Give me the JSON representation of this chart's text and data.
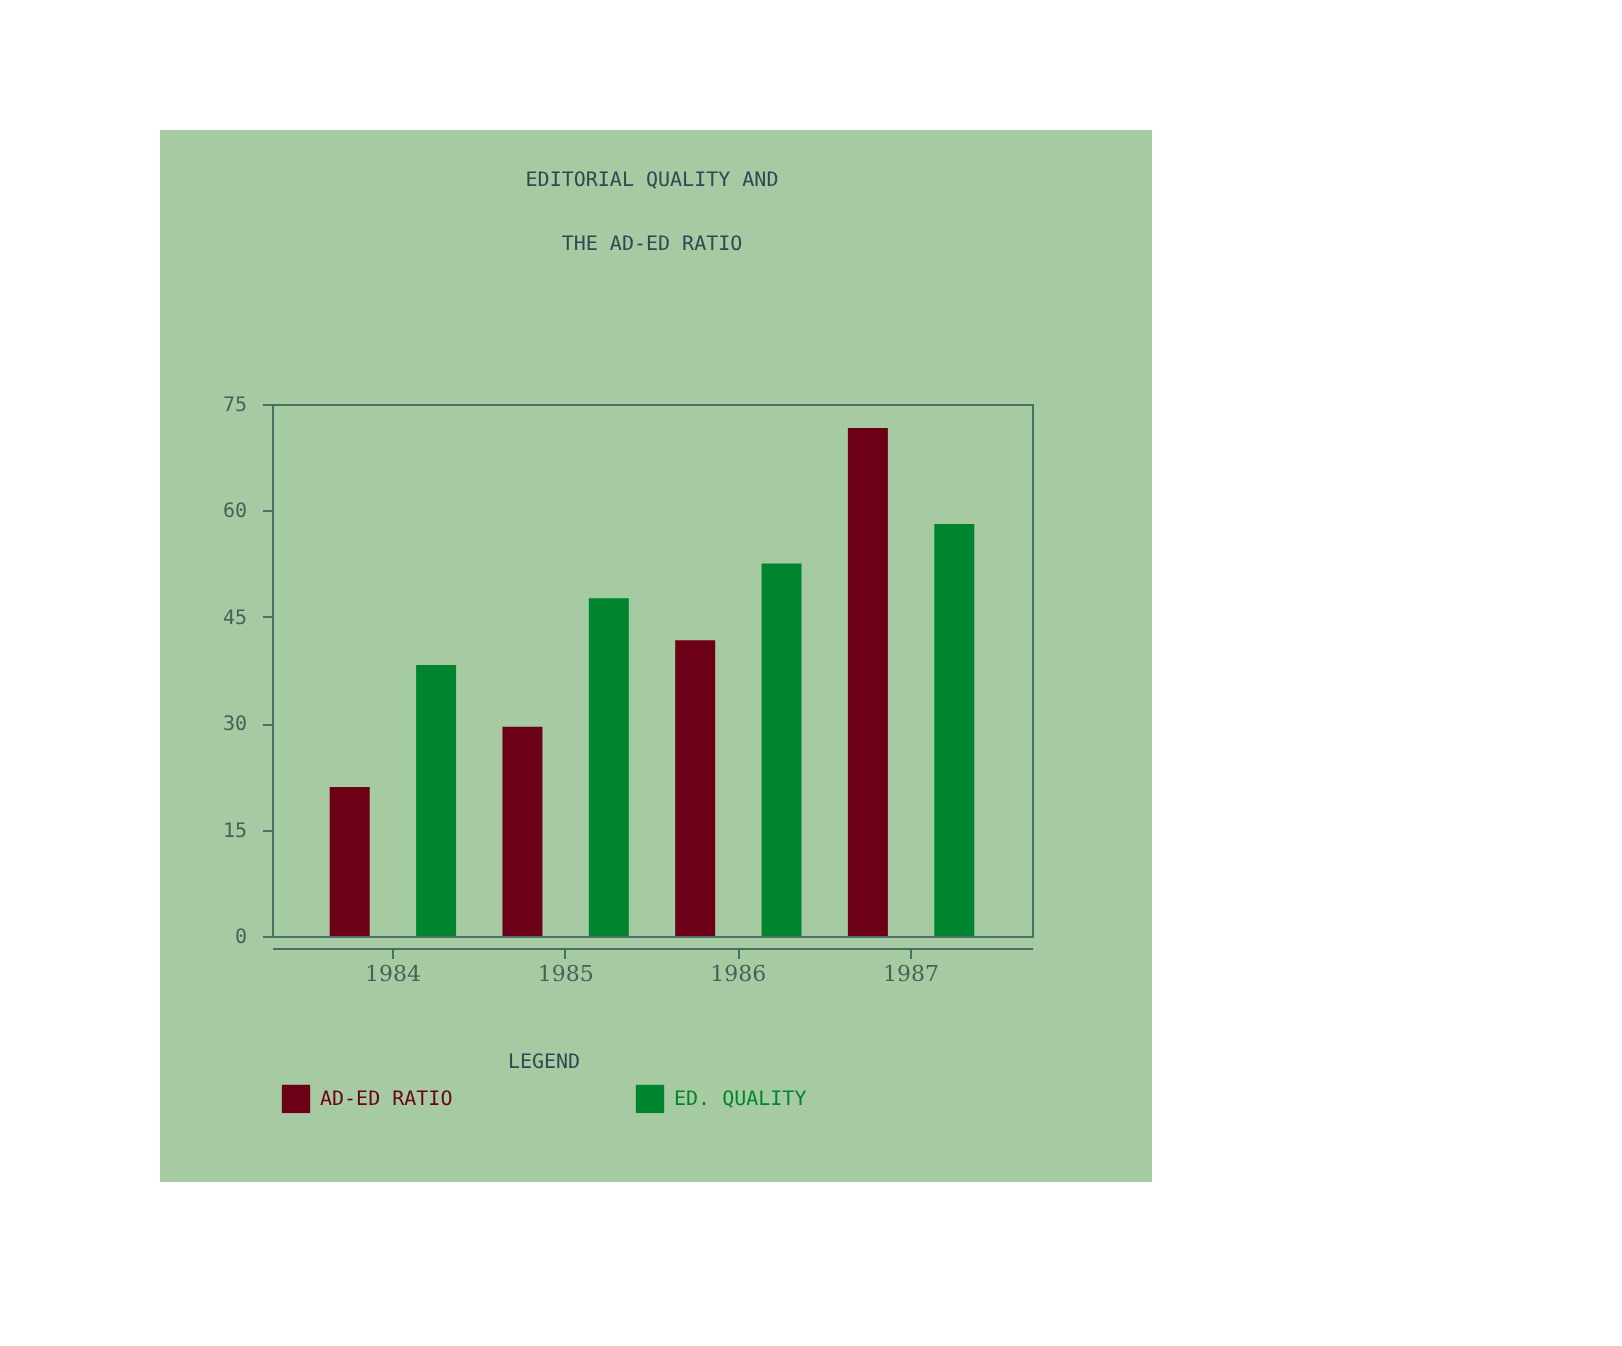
{
  "chart_data": {
    "type": "bar",
    "title": "EDITORIAL QUALITY AND",
    "subtitle": "THE AD-ED RATIO",
    "categories": [
      "1984",
      "1985",
      "1986",
      "1987"
    ],
    "series": [
      {
        "name": "AD-ED RATIO",
        "color": "#6b0016",
        "values": [
          21,
          29.5,
          41.7,
          71.6
        ]
      },
      {
        "name": "ED. QUALITY",
        "color": "#00852e",
        "values": [
          38.2,
          47.6,
          52.5,
          58.1
        ]
      }
    ],
    "ylim": [
      0,
      75
    ],
    "yticks": [
      0,
      15,
      30,
      45,
      60,
      75
    ],
    "grid": false,
    "legend": "bottom",
    "legend_title": "LEGEND"
  }
}
